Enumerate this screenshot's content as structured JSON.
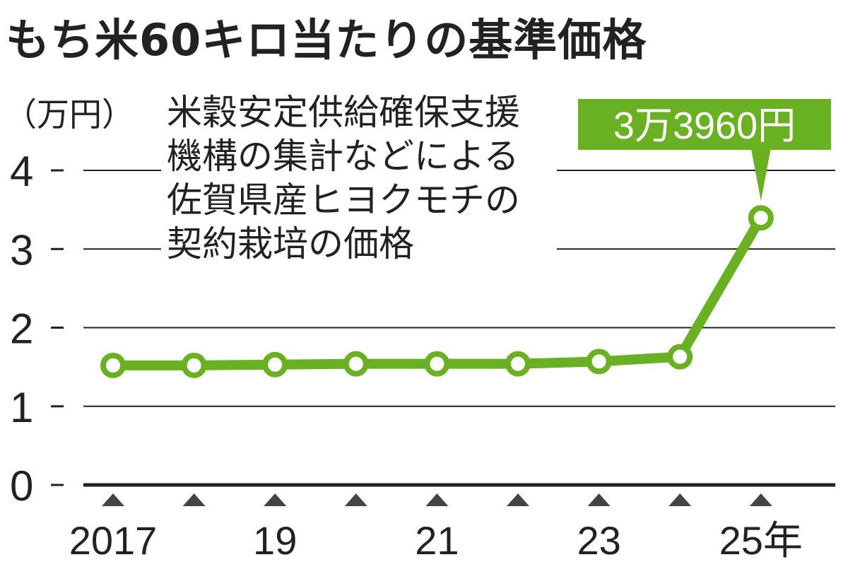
{
  "title": "もち米60キロ当たりの基準価格",
  "chart_data": {
    "type": "line",
    "title": "もち米60キロ当たりの基準価格",
    "ylabel": "（万円）",
    "source_note": [
      "米穀安定供給確保支援",
      "機構の集計などによる",
      "佐賀県産ヒヨクモチの",
      "契約栽培の価格"
    ],
    "ylim": [
      0,
      4
    ],
    "yticks": [
      0,
      1,
      2,
      3,
      4
    ],
    "x_tick_labels": [
      {
        "index": 0,
        "label": "2017"
      },
      {
        "index": 2,
        "label": "19"
      },
      {
        "index": 4,
        "label": "21"
      },
      {
        "index": 6,
        "label": "23"
      },
      {
        "index": 8,
        "label": "25年"
      }
    ],
    "x": [
      2017,
      2018,
      2019,
      2020,
      2021,
      2022,
      2023,
      2024,
      2025
    ],
    "values": [
      1.52,
      1.52,
      1.53,
      1.54,
      1.54,
      1.54,
      1.57,
      1.63,
      3.396
    ],
    "annotation": {
      "index": 8,
      "text": "3万3960円"
    },
    "grid": true,
    "colors": {
      "line": "#6ab023",
      "marker_fill": "#ffffff",
      "annotation_bg": "#6ab023",
      "annotation_text": "#ffffff",
      "axis": "#222222",
      "grid": "#222222",
      "triangle": "#444444"
    }
  }
}
